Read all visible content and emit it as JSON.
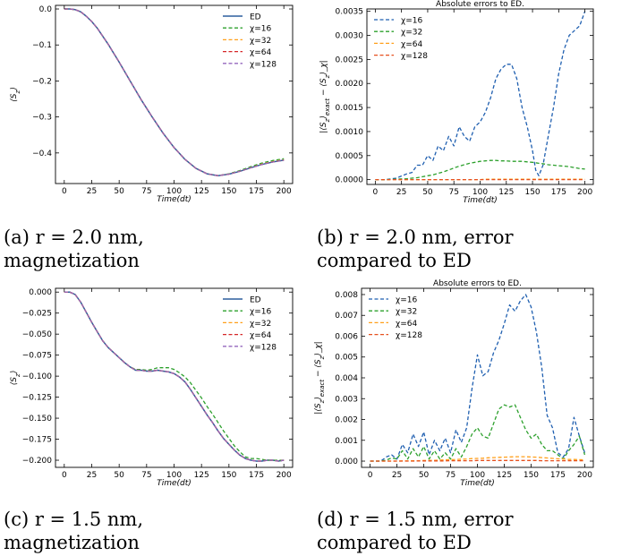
{
  "captions": [
    {
      "line1": "(a) r = 2.0 nm,",
      "line2": "magnetization"
    },
    {
      "line1": "(b) r = 2.0 nm, error",
      "line2": "compared to ED"
    },
    {
      "line1": "(c) r = 1.5 nm,",
      "line2": "magnetization"
    },
    {
      "line1": "(d) r = 1.5 nm, error",
      "line2": "compared to ED"
    }
  ],
  "colors": {
    "ED": "#2d5f9e",
    "chi16": "#1f6fd1",
    "chi16_green": "#2ca02c",
    "chi32": "#ff9f1a",
    "chi64": "#d62728",
    "chi128": "#9467bd",
    "err16": "#1f5fb0",
    "err32": "#2ca02c",
    "err64": "#ff9f1a",
    "err128": "#e6501e"
  },
  "chart_data": [
    {
      "type": "line",
      "title": "",
      "xlabel": "Time(dt)",
      "ylabel": "⟨S_z⟩",
      "xlim": [
        -8,
        208
      ],
      "ylim": [
        -0.485,
        0.01
      ],
      "xticks": [
        0,
        25,
        50,
        75,
        100,
        125,
        150,
        175,
        200
      ],
      "yticks": [
        0.0,
        -0.1,
        -0.2,
        -0.3,
        -0.4
      ],
      "ytick_labels": [
        "0.0",
        "−0.1",
        "−0.2",
        "−0.3",
        "−0.4"
      ],
      "legend_position": "top-right",
      "x": [
        0,
        5,
        10,
        15,
        20,
        25,
        30,
        40,
        50,
        60,
        70,
        80,
        90,
        100,
        110,
        120,
        130,
        140,
        150,
        160,
        170,
        180,
        190,
        200
      ],
      "series": [
        {
          "name": "ED",
          "style": "solid",
          "values": [
            0.0,
            0.0,
            -0.002,
            -0.008,
            -0.02,
            -0.035,
            -0.053,
            -0.098,
            -0.148,
            -0.2,
            -0.252,
            -0.3,
            -0.345,
            -0.385,
            -0.418,
            -0.443,
            -0.458,
            -0.463,
            -0.459,
            -0.451,
            -0.441,
            -0.432,
            -0.425,
            -0.42
          ]
        },
        {
          "name": "χ=16",
          "style": "dashed",
          "values": [
            0.0,
            0.0,
            -0.002,
            -0.008,
            -0.02,
            -0.035,
            -0.053,
            -0.098,
            -0.148,
            -0.2,
            -0.252,
            -0.3,
            -0.345,
            -0.385,
            -0.418,
            -0.443,
            -0.458,
            -0.463,
            -0.458,
            -0.449,
            -0.438,
            -0.428,
            -0.421,
            -0.416
          ]
        },
        {
          "name": "χ=32",
          "style": "dashed",
          "values": [
            0.0,
            0.0,
            -0.002,
            -0.008,
            -0.02,
            -0.035,
            -0.053,
            -0.098,
            -0.148,
            -0.2,
            -0.252,
            -0.3,
            -0.345,
            -0.385,
            -0.418,
            -0.443,
            -0.458,
            -0.463,
            -0.459,
            -0.451,
            -0.441,
            -0.431,
            -0.424,
            -0.419
          ]
        },
        {
          "name": "χ=64",
          "style": "dashed",
          "values": [
            0.0,
            0.0,
            -0.002,
            -0.008,
            -0.02,
            -0.035,
            -0.053,
            -0.098,
            -0.148,
            -0.2,
            -0.252,
            -0.3,
            -0.345,
            -0.385,
            -0.418,
            -0.443,
            -0.458,
            -0.463,
            -0.459,
            -0.451,
            -0.441,
            -0.432,
            -0.425,
            -0.42
          ]
        },
        {
          "name": "χ=128",
          "style": "dashed",
          "values": [
            0.0,
            0.0,
            -0.002,
            -0.008,
            -0.02,
            -0.035,
            -0.053,
            -0.098,
            -0.148,
            -0.2,
            -0.252,
            -0.3,
            -0.345,
            -0.385,
            -0.418,
            -0.443,
            -0.458,
            -0.463,
            -0.459,
            -0.451,
            -0.441,
            -0.432,
            -0.425,
            -0.42
          ]
        }
      ]
    },
    {
      "type": "line",
      "title": "Absolute errors to ED.",
      "xlabel": "Time(dt)",
      "ylabel": "|⟨S_z⟩_exact − ⟨S_z⟩_χ|",
      "xlim": [
        -8,
        208
      ],
      "ylim": [
        -0.0001,
        0.00355
      ],
      "xticks": [
        0,
        25,
        50,
        75,
        100,
        125,
        150,
        175,
        200
      ],
      "yticks": [
        0.0,
        0.0005,
        0.001,
        0.0015,
        0.002,
        0.0025,
        0.003,
        0.0035
      ],
      "ytick_labels": [
        "0.0000",
        "0.0005",
        "0.0010",
        "0.0015",
        "0.0020",
        "0.0025",
        "0.0030",
        "0.0035"
      ],
      "legend_position": "top-left",
      "x": [
        0,
        10,
        20,
        30,
        35,
        40,
        45,
        50,
        55,
        60,
        65,
        70,
        75,
        80,
        85,
        90,
        95,
        100,
        105,
        110,
        115,
        120,
        125,
        130,
        135,
        140,
        145,
        150,
        153,
        156,
        160,
        165,
        170,
        175,
        180,
        185,
        190,
        195,
        200
      ],
      "series": [
        {
          "name": "χ=16",
          "style": "dashed",
          "values": [
            0.0,
            0.0,
            3e-05,
            0.00012,
            0.00015,
            0.0003,
            0.0003,
            0.0005,
            0.0004,
            0.0007,
            0.0006,
            0.0009,
            0.0007,
            0.0011,
            0.0009,
            0.0008,
            0.0011,
            0.0012,
            0.0014,
            0.0017,
            0.0021,
            0.0023,
            0.0024,
            0.0024,
            0.0021,
            0.0015,
            0.0011,
            0.0006,
            0.0002,
            8e-05,
            0.0003,
            0.0009,
            0.0015,
            0.0022,
            0.0027,
            0.003,
            0.0031,
            0.0032,
            0.0035
          ]
        },
        {
          "name": "χ=32",
          "style": "dashed",
          "values": [
            0.0,
            0.0,
            1e-05,
            2e-05,
            3e-05,
            4e-05,
            6e-05,
            8e-05,
            0.0001,
            0.00013,
            0.00016,
            0.0002,
            0.00024,
            0.00028,
            0.00031,
            0.00034,
            0.00036,
            0.00038,
            0.00039,
            0.0004,
            0.0004,
            0.00039,
            0.00039,
            0.00038,
            0.00038,
            0.00038,
            0.00037,
            0.00036,
            0.00035,
            0.00034,
            0.00033,
            0.00031,
            0.0003,
            0.00029,
            0.00028,
            0.00027,
            0.00025,
            0.00023,
            0.00022
          ]
        },
        {
          "name": "χ=64",
          "style": "dashed",
          "values": [
            0.0,
            0.0,
            0.0,
            0.0,
            0.0,
            0.0,
            0.0,
            0.0,
            0.0,
            0.0,
            0.0,
            0.0,
            0.0,
            0.0,
            0.0,
            0.0,
            0.0,
            0.0,
            1e-05,
            1e-05,
            1e-05,
            1e-05,
            1e-05,
            1e-05,
            1e-05,
            1e-05,
            1e-05,
            1e-05,
            1e-05,
            1e-05,
            1e-05,
            1e-05,
            1e-05,
            1e-05,
            1e-05,
            1e-05,
            1e-05,
            1e-05,
            1e-05
          ]
        },
        {
          "name": "χ=128",
          "style": "dashed",
          "values": [
            0.0,
            0.0,
            0.0,
            0.0,
            0.0,
            0.0,
            0.0,
            0.0,
            0.0,
            0.0,
            0.0,
            0.0,
            0.0,
            0.0,
            0.0,
            0.0,
            0.0,
            0.0,
            0.0,
            0.0,
            0.0,
            0.0,
            0.0,
            0.0,
            0.0,
            0.0,
            0.0,
            0.0,
            0.0,
            0.0,
            0.0,
            0.0,
            0.0,
            0.0,
            0.0,
            0.0,
            0.0,
            0.0,
            0.0
          ]
        }
      ]
    },
    {
      "type": "line",
      "title": "",
      "xlabel": "Time(dt)",
      "ylabel": "⟨S_z⟩",
      "xlim": [
        -8,
        208
      ],
      "ylim": [
        -0.2085,
        0.0045
      ],
      "xticks": [
        0,
        25,
        50,
        75,
        100,
        125,
        150,
        175,
        200
      ],
      "yticks": [
        0.0,
        -0.025,
        -0.05,
        -0.075,
        -0.1,
        -0.125,
        -0.15,
        -0.175,
        -0.2
      ],
      "ytick_labels": [
        "0.000",
        "−0.025",
        "−0.050",
        "−0.075",
        "−0.100",
        "−0.125",
        "−0.150",
        "−0.175",
        "−0.200"
      ],
      "legend_position": "top-right",
      "x": [
        0,
        5,
        10,
        15,
        20,
        25,
        30,
        35,
        40,
        45,
        50,
        55,
        60,
        65,
        70,
        75,
        80,
        85,
        90,
        95,
        100,
        105,
        110,
        115,
        120,
        125,
        130,
        135,
        140,
        145,
        150,
        155,
        160,
        165,
        170,
        175,
        180,
        185,
        190,
        195,
        200
      ],
      "series": [
        {
          "name": "ED",
          "style": "solid",
          "values": [
            0.0,
            0.0,
            -0.003,
            -0.012,
            -0.024,
            -0.036,
            -0.047,
            -0.058,
            -0.066,
            -0.072,
            -0.078,
            -0.084,
            -0.089,
            -0.093,
            -0.093,
            -0.094,
            -0.094,
            -0.093,
            -0.094,
            -0.095,
            -0.097,
            -0.101,
            -0.107,
            -0.116,
            -0.126,
            -0.136,
            -0.146,
            -0.155,
            -0.165,
            -0.174,
            -0.181,
            -0.188,
            -0.194,
            -0.198,
            -0.2,
            -0.201,
            -0.201,
            -0.2,
            -0.2,
            -0.201,
            -0.2
          ]
        },
        {
          "name": "χ=16",
          "style": "dashed",
          "values": [
            0.0,
            0.0,
            -0.003,
            -0.012,
            -0.024,
            -0.036,
            -0.047,
            -0.058,
            -0.066,
            -0.072,
            -0.078,
            -0.084,
            -0.089,
            -0.092,
            -0.092,
            -0.093,
            -0.092,
            -0.09,
            -0.09,
            -0.09,
            -0.092,
            -0.096,
            -0.101,
            -0.108,
            -0.117,
            -0.126,
            -0.136,
            -0.145,
            -0.155,
            -0.165,
            -0.174,
            -0.183,
            -0.19,
            -0.196,
            -0.198,
            -0.198,
            -0.199,
            -0.2,
            -0.2,
            -0.2,
            -0.2
          ]
        },
        {
          "name": "χ=32",
          "style": "dashed",
          "values": [
            0.0,
            0.0,
            -0.003,
            -0.012,
            -0.024,
            -0.036,
            -0.047,
            -0.058,
            -0.066,
            -0.072,
            -0.078,
            -0.084,
            -0.089,
            -0.093,
            -0.093,
            -0.094,
            -0.094,
            -0.093,
            -0.094,
            -0.095,
            -0.097,
            -0.101,
            -0.107,
            -0.116,
            -0.126,
            -0.136,
            -0.146,
            -0.155,
            -0.165,
            -0.174,
            -0.181,
            -0.188,
            -0.194,
            -0.198,
            -0.2,
            -0.201,
            -0.201,
            -0.2,
            -0.2,
            -0.201,
            -0.2
          ]
        },
        {
          "name": "χ=64",
          "style": "dashed",
          "values": [
            0.0,
            0.0,
            -0.003,
            -0.012,
            -0.024,
            -0.036,
            -0.047,
            -0.058,
            -0.066,
            -0.072,
            -0.078,
            -0.084,
            -0.089,
            -0.093,
            -0.093,
            -0.094,
            -0.094,
            -0.093,
            -0.094,
            -0.095,
            -0.097,
            -0.101,
            -0.107,
            -0.116,
            -0.126,
            -0.136,
            -0.146,
            -0.155,
            -0.165,
            -0.174,
            -0.181,
            -0.188,
            -0.194,
            -0.198,
            -0.2,
            -0.201,
            -0.201,
            -0.2,
            -0.2,
            -0.201,
            -0.2
          ]
        },
        {
          "name": "χ=128",
          "style": "dashed",
          "values": [
            0.0,
            0.0,
            -0.003,
            -0.012,
            -0.024,
            -0.036,
            -0.047,
            -0.058,
            -0.066,
            -0.072,
            -0.078,
            -0.084,
            -0.089,
            -0.093,
            -0.093,
            -0.094,
            -0.094,
            -0.093,
            -0.094,
            -0.095,
            -0.097,
            -0.101,
            -0.107,
            -0.116,
            -0.126,
            -0.136,
            -0.146,
            -0.155,
            -0.165,
            -0.174,
            -0.181,
            -0.188,
            -0.194,
            -0.198,
            -0.2,
            -0.201,
            -0.201,
            -0.2,
            -0.2,
            -0.201,
            -0.2
          ]
        }
      ]
    },
    {
      "type": "line",
      "title": "Absolute errors to ED.",
      "xlabel": "Time(dt)",
      "ylabel": "|⟨S_z⟩_exact − ⟨S_z⟩_χ|",
      "xlim": [
        -8,
        208
      ],
      "ylim": [
        -0.0003,
        0.0083
      ],
      "xticks": [
        0,
        25,
        50,
        75,
        100,
        125,
        150,
        175,
        200
      ],
      "yticks": [
        0.0,
        0.001,
        0.002,
        0.003,
        0.004,
        0.005,
        0.006,
        0.007,
        0.008
      ],
      "ytick_labels": [
        "0.000",
        "0.001",
        "0.002",
        "0.003",
        "0.004",
        "0.005",
        "0.006",
        "0.007",
        "0.008"
      ],
      "legend_position": "top-left",
      "x": [
        0,
        10,
        15,
        20,
        25,
        30,
        35,
        40,
        45,
        50,
        55,
        60,
        65,
        70,
        75,
        80,
        85,
        90,
        95,
        100,
        105,
        110,
        115,
        120,
        125,
        130,
        135,
        140,
        145,
        150,
        155,
        160,
        165,
        170,
        175,
        180,
        185,
        190,
        195,
        200
      ],
      "series": [
        {
          "name": "χ=16",
          "style": "dashed",
          "values": [
            0.0,
            0.0,
            0.0002,
            0.0003,
            0.0001,
            0.0008,
            0.0004,
            0.0013,
            0.0007,
            0.0014,
            0.0003,
            0.001,
            0.0005,
            0.0011,
            0.0004,
            0.0015,
            0.0009,
            0.0016,
            0.0035,
            0.0051,
            0.0041,
            0.0043,
            0.0052,
            0.0058,
            0.0066,
            0.0075,
            0.0072,
            0.0077,
            0.008,
            0.0074,
            0.0062,
            0.0045,
            0.0022,
            0.0016,
            0.0004,
            0.0002,
            0.0006,
            0.0021,
            0.0012,
            0.0004
          ]
        },
        {
          "name": "χ=32",
          "style": "dashed",
          "values": [
            0.0,
            0.0,
            5e-05,
            0.00015,
            0.0001,
            0.0005,
            0.0001,
            0.0006,
            0.0002,
            0.0007,
            0.0001,
            0.0005,
            0.0001,
            0.0004,
            0.0001,
            0.0006,
            0.0002,
            0.0007,
            0.0013,
            0.0016,
            0.0012,
            0.0011,
            0.0018,
            0.0025,
            0.0027,
            0.0026,
            0.0027,
            0.0021,
            0.0015,
            0.0011,
            0.0013,
            0.0008,
            0.0005,
            0.0005,
            0.0003,
            0.0001,
            0.0005,
            0.0008,
            0.0012,
            0.0003
          ]
        },
        {
          "name": "χ=64",
          "style": "dashed",
          "values": [
            0.0,
            0.0,
            0.0,
            0.0,
            0.0,
            1e-05,
            1e-05,
            2e-05,
            2e-05,
            3e-05,
            3e-05,
            4e-05,
            5e-05,
            6e-05,
            7e-05,
            8e-05,
            9e-05,
            0.0001,
            0.00012,
            0.00013,
            0.00014,
            0.00016,
            0.00017,
            0.00018,
            0.00019,
            0.0002,
            0.00021,
            0.00021,
            0.00021,
            0.0002,
            0.00019,
            0.00017,
            0.00015,
            0.00013,
            0.00011,
            0.0001,
            8e-05,
            8e-05,
            7e-05,
            6e-05
          ]
        },
        {
          "name": "χ=128",
          "style": "dashed",
          "values": [
            0.0,
            0.0,
            0.0,
            0.0,
            0.0,
            0.0,
            0.0,
            0.0,
            1e-05,
            1e-05,
            1e-05,
            1e-05,
            1e-05,
            1e-05,
            2e-05,
            2e-05,
            2e-05,
            2e-05,
            2e-05,
            3e-05,
            3e-05,
            3e-05,
            3e-05,
            3e-05,
            3e-05,
            3e-05,
            3e-05,
            3e-05,
            3e-05,
            3e-05,
            3e-05,
            2e-05,
            2e-05,
            2e-05,
            2e-05,
            2e-05,
            2e-05,
            2e-05,
            2e-05,
            2e-05
          ]
        }
      ]
    }
  ]
}
